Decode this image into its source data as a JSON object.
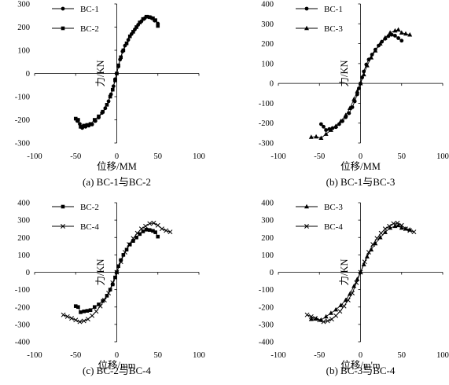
{
  "chart_data": [
    {
      "type": "line",
      "caption": "(a) BC-1与BC-2",
      "xlabel": "位移/MM",
      "ylabel": "力/KN",
      "xlim": [
        -100,
        100
      ],
      "ylim": [
        -300,
        300
      ],
      "xticks": [
        -100,
        -50,
        0,
        50,
        100
      ],
      "yticks": [
        -300,
        -200,
        -100,
        0,
        100,
        200,
        300
      ],
      "legend_position": "top-left",
      "series": [
        {
          "name": "BC-1",
          "marker": "circle",
          "points": [
            [
              -48,
              -205
            ],
            [
              -45,
              -218
            ],
            [
              -42,
              -235
            ],
            [
              -38,
              -230
            ],
            [
              -34,
              -225
            ],
            [
              -30,
              -220
            ],
            [
              -26,
              -205
            ],
            [
              -22,
              -190
            ],
            [
              -18,
              -170
            ],
            [
              -14,
              -150
            ],
            [
              -10,
              -120
            ],
            [
              -7,
              -90
            ],
            [
              -4,
              -55
            ],
            [
              -2,
              -25
            ],
            [
              0,
              0
            ],
            [
              2,
              30
            ],
            [
              4,
              60
            ],
            [
              7,
              95
            ],
            [
              10,
              120
            ],
            [
              14,
              145
            ],
            [
              18,
              170
            ],
            [
              22,
              190
            ],
            [
              26,
              210
            ],
            [
              30,
              225
            ],
            [
              34,
              238
            ],
            [
              38,
              245
            ],
            [
              42,
              240
            ],
            [
              46,
              228
            ],
            [
              50,
              215
            ]
          ]
        },
        {
          "name": "BC-2",
          "marker": "square",
          "points": [
            [
              -50,
              -195
            ],
            [
              -47,
              -200
            ],
            [
              -44,
              -230
            ],
            [
              -40,
              -225
            ],
            [
              -36,
              -222
            ],
            [
              -32,
              -218
            ],
            [
              -27,
              -200
            ],
            [
              -22,
              -185
            ],
            [
              -17,
              -165
            ],
            [
              -12,
              -135
            ],
            [
              -8,
              -100
            ],
            [
              -5,
              -70
            ],
            [
              -2,
              -30
            ],
            [
              0,
              0
            ],
            [
              2,
              35
            ],
            [
              5,
              70
            ],
            [
              8,
              100
            ],
            [
              12,
              130
            ],
            [
              16,
              160
            ],
            [
              20,
              180
            ],
            [
              24,
              200
            ],
            [
              28,
              220
            ],
            [
              32,
              235
            ],
            [
              36,
              245
            ],
            [
              40,
              243
            ],
            [
              44,
              238
            ],
            [
              47,
              230
            ],
            [
              50,
              205
            ]
          ]
        }
      ]
    },
    {
      "type": "line",
      "caption": "(b) BC-1与BC-3",
      "xlabel": "位移/MM",
      "ylabel": "力/KN",
      "xlim": [
        -100,
        100
      ],
      "ylim": [
        -300,
        400
      ],
      "xticks": [
        -100,
        -50,
        0,
        50,
        100
      ],
      "yticks": [
        -300,
        -200,
        -100,
        0,
        100,
        200,
        300,
        400
      ],
      "legend_position": "top-left",
      "series": [
        {
          "name": "BC-1",
          "marker": "circle",
          "points": [
            [
              -48,
              -205
            ],
            [
              -45,
              -218
            ],
            [
              -42,
              -235
            ],
            [
              -38,
              -230
            ],
            [
              -34,
              -225
            ],
            [
              -30,
              -220
            ],
            [
              -26,
              -205
            ],
            [
              -22,
              -190
            ],
            [
              -18,
              -170
            ],
            [
              -14,
              -150
            ],
            [
              -10,
              -120
            ],
            [
              -7,
              -90
            ],
            [
              -4,
              -55
            ],
            [
              -2,
              -25
            ],
            [
              0,
              0
            ],
            [
              2,
              30
            ],
            [
              4,
              60
            ],
            [
              7,
              95
            ],
            [
              10,
              120
            ],
            [
              14,
              145
            ],
            [
              18,
              170
            ],
            [
              22,
              190
            ],
            [
              26,
              210
            ],
            [
              30,
              225
            ],
            [
              34,
              238
            ],
            [
              38,
              245
            ],
            [
              42,
              240
            ],
            [
              46,
              228
            ],
            [
              50,
              215
            ]
          ]
        },
        {
          "name": "BC-3",
          "marker": "triangle",
          "points": [
            [
              -60,
              -270
            ],
            [
              -54,
              -268
            ],
            [
              -48,
              -275
            ],
            [
              -42,
              -255
            ],
            [
              -36,
              -235
            ],
            [
              -30,
              -215
            ],
            [
              -24,
              -190
            ],
            [
              -18,
              -160
            ],
            [
              -13,
              -125
            ],
            [
              -8,
              -80
            ],
            [
              -4,
              -40
            ],
            [
              0,
              0
            ],
            [
              4,
              45
            ],
            [
              8,
              90
            ],
            [
              13,
              130
            ],
            [
              18,
              165
            ],
            [
              24,
              200
            ],
            [
              30,
              230
            ],
            [
              36,
              255
            ],
            [
              42,
              265
            ],
            [
              46,
              270
            ],
            [
              50,
              255
            ],
            [
              55,
              250
            ],
            [
              60,
              245
            ]
          ]
        }
      ]
    },
    {
      "type": "line",
      "caption": "(c) BC-2与BC-4",
      "xlabel": "位移/mm",
      "ylabel": "力/KN",
      "xlim": [
        -100,
        100
      ],
      "ylim": [
        -400,
        400
      ],
      "xticks": [
        -100,
        -50,
        0,
        50,
        100
      ],
      "yticks": [
        -400,
        -300,
        -200,
        -100,
        0,
        100,
        200,
        300,
        400
      ],
      "legend_position": "top-left",
      "series": [
        {
          "name": "BC-2",
          "marker": "square",
          "points": [
            [
              -50,
              -195
            ],
            [
              -47,
              -200
            ],
            [
              -44,
              -230
            ],
            [
              -40,
              -225
            ],
            [
              -36,
              -222
            ],
            [
              -32,
              -218
            ],
            [
              -27,
              -200
            ],
            [
              -22,
              -185
            ],
            [
              -17,
              -165
            ],
            [
              -12,
              -135
            ],
            [
              -8,
              -100
            ],
            [
              -5,
              -70
            ],
            [
              -2,
              -30
            ],
            [
              0,
              0
            ],
            [
              2,
              35
            ],
            [
              5,
              70
            ],
            [
              8,
              100
            ],
            [
              12,
              130
            ],
            [
              16,
              160
            ],
            [
              20,
              180
            ],
            [
              24,
              200
            ],
            [
              28,
              220
            ],
            [
              32,
              235
            ],
            [
              36,
              245
            ],
            [
              40,
              243
            ],
            [
              44,
              238
            ],
            [
              47,
              230
            ],
            [
              50,
              205
            ]
          ]
        },
        {
          "name": "BC-4",
          "marker": "x",
          "points": [
            [
              -65,
              -245
            ],
            [
              -60,
              -255
            ],
            [
              -55,
              -265
            ],
            [
              -50,
              -275
            ],
            [
              -45,
              -285
            ],
            [
              -40,
              -280
            ],
            [
              -35,
              -270
            ],
            [
              -30,
              -250
            ],
            [
              -25,
              -225
            ],
            [
              -20,
              -195
            ],
            [
              -15,
              -160
            ],
            [
              -10,
              -120
            ],
            [
              -5,
              -60
            ],
            [
              0,
              0
            ],
            [
              5,
              60
            ],
            [
              10,
              115
            ],
            [
              15,
              160
            ],
            [
              20,
              195
            ],
            [
              25,
              225
            ],
            [
              30,
              250
            ],
            [
              35,
              265
            ],
            [
              40,
              280
            ],
            [
              45,
              283
            ],
            [
              50,
              270
            ],
            [
              55,
              250
            ],
            [
              60,
              240
            ],
            [
              65,
              232
            ]
          ]
        }
      ]
    },
    {
      "type": "line",
      "caption": "(b) BC-3与BC-4",
      "xlabel": "位移/m'm",
      "ylabel": "力/KN",
      "xlim": [
        -100,
        100
      ],
      "ylim": [
        -400,
        400
      ],
      "xticks": [
        -100,
        -50,
        0,
        50,
        100
      ],
      "yticks": [
        -400,
        -300,
        -200,
        -100,
        0,
        100,
        200,
        300,
        400
      ],
      "legend_position": "top-left",
      "series": [
        {
          "name": "BC-3",
          "marker": "triangle",
          "points": [
            [
              -60,
              -270
            ],
            [
              -54,
              -268
            ],
            [
              -48,
              -275
            ],
            [
              -42,
              -255
            ],
            [
              -36,
              -235
            ],
            [
              -30,
              -215
            ],
            [
              -24,
              -190
            ],
            [
              -18,
              -160
            ],
            [
              -13,
              -125
            ],
            [
              -8,
              -80
            ],
            [
              -4,
              -40
            ],
            [
              0,
              0
            ],
            [
              4,
              45
            ],
            [
              8,
              90
            ],
            [
              13,
              130
            ],
            [
              18,
              165
            ],
            [
              24,
              200
            ],
            [
              30,
              230
            ],
            [
              36,
              255
            ],
            [
              42,
              265
            ],
            [
              46,
              270
            ],
            [
              50,
              255
            ],
            [
              55,
              250
            ],
            [
              60,
              245
            ]
          ]
        },
        {
          "name": "BC-4",
          "marker": "x",
          "points": [
            [
              -65,
              -245
            ],
            [
              -60,
              -255
            ],
            [
              -55,
              -265
            ],
            [
              -50,
              -275
            ],
            [
              -45,
              -285
            ],
            [
              -40,
              -280
            ],
            [
              -35,
              -270
            ],
            [
              -30,
              -250
            ],
            [
              -25,
              -225
            ],
            [
              -20,
              -195
            ],
            [
              -15,
              -160
            ],
            [
              -10,
              -120
            ],
            [
              -5,
              -60
            ],
            [
              0,
              0
            ],
            [
              5,
              60
            ],
            [
              10,
              115
            ],
            [
              15,
              160
            ],
            [
              20,
              195
            ],
            [
              25,
              225
            ],
            [
              30,
              250
            ],
            [
              35,
              265
            ],
            [
              40,
              280
            ],
            [
              45,
              283
            ],
            [
              50,
              270
            ],
            [
              55,
              250
            ],
            [
              60,
              240
            ],
            [
              65,
              232
            ]
          ]
        }
      ]
    }
  ]
}
